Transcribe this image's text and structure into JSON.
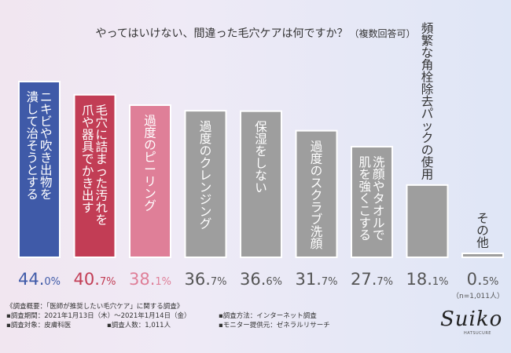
{
  "header": {
    "title": "やってはいけない、間違った毛穴ケアは何ですか？",
    "subtitle": "（複数回答可）"
  },
  "chart_data": {
    "type": "bar",
    "title": "やってはいけない、間違った毛穴ケアは何ですか？（複数回答可）",
    "categories": [
      "ニキビや吹き出物を潰して治そうとする",
      "毛穴に詰まった汚れを爪や器具でかき出す",
      "過度のピーリング",
      "過度のクレンジング",
      "保湿をしない",
      "過度のスクラブ洗顔",
      "洗顔やタオルで肌を強くこする",
      "頻繁な角栓除去パックの使用",
      "その他"
    ],
    "label_columns": [
      [
        "ニキビや吹き出物を",
        "潰して治そうとする"
      ],
      [
        "毛穴に詰まった汚れを",
        "爪や器具でかき出す"
      ],
      [
        "過度のピーリング"
      ],
      [
        "過度のクレンジング"
      ],
      [
        "保湿をしない"
      ],
      [
        "過度のスクラブ洗顔"
      ],
      [
        "洗顔やタオルで",
        "肌を強くこする"
      ],
      [
        "頻繁な角栓除去パックの使用"
      ],
      [
        "その他"
      ]
    ],
    "values": [
      44.0,
      40.7,
      38.1,
      36.7,
      36.6,
      31.7,
      27.7,
      18.1,
      0.5
    ],
    "value_labels_num": [
      "44.",
      "40.",
      "38.",
      "36.",
      "36.",
      "31.",
      "27.",
      "18.",
      "0."
    ],
    "value_labels_dec": [
      "0%",
      "7%",
      "1%",
      "7%",
      "6%",
      "7%",
      "7%",
      "1%",
      "5%"
    ],
    "ylim": [
      0,
      44.0
    ],
    "grid": false,
    "colors": {
      "bar_1": "#3f5aa8",
      "bar_2": "#c23d55",
      "bar_3": "#df7f98",
      "bar_rest": "#9e9e9e",
      "bar_border": "#ffffff",
      "text_light": "#ffffff",
      "text_dark": "#333333",
      "value_1": "#3f5aa8",
      "value_2": "#c23d55",
      "value_3": "#df7f98",
      "value_rest": "#555555"
    }
  },
  "sample_note": "（n=1,011人）",
  "footer": {
    "heading": "《調査概要：「医師が推奨したい毛穴ケア」に関する調査》",
    "period": "▪調査期間：2021年1月13日（木）〜2021年1月14日（金）",
    "method": "▪調査方法：インターネット調査",
    "target": "▪調査対象：皮膚科医",
    "count": "▪調査人数：1,011人",
    "provider": "▪モニター提供元：ゼネラルリサーチ"
  },
  "logo": {
    "script": "Suiko",
    "tagline": "HATSUCURE"
  }
}
